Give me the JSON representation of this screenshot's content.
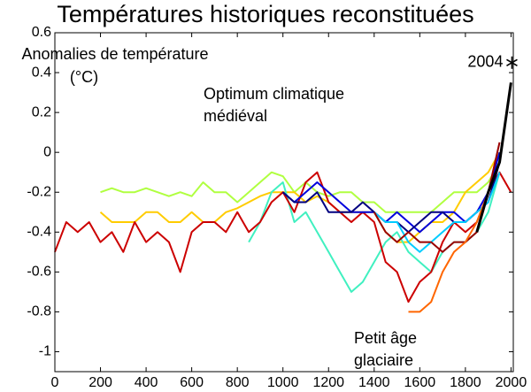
{
  "chart_data": {
    "type": "line",
    "title": "Températures historiques reconstituées",
    "ylabel": [
      "Anomalies de température",
      "(°C)"
    ],
    "annotations": [
      {
        "lines": [
          "Optimum climatique",
          "médiéval"
        ]
      },
      {
        "lines": [
          "Petit âge",
          "glaciaire"
        ]
      }
    ],
    "highlight": {
      "x": 2004,
      "y": 0.45,
      "label": "2004",
      "color": "#000000"
    },
    "x": [
      0,
      50,
      100,
      150,
      200,
      250,
      300,
      350,
      400,
      450,
      500,
      550,
      600,
      650,
      700,
      750,
      800,
      850,
      900,
      950,
      1000,
      1050,
      1100,
      1150,
      1200,
      1250,
      1300,
      1350,
      1400,
      1450,
      1500,
      1550,
      1600,
      1650,
      1700,
      1750,
      1800,
      1850,
      1900,
      1950,
      2000
    ],
    "xlim": [
      0,
      2010
    ],
    "ylim": [
      -1.1,
      0.6
    ],
    "xticks": [
      0,
      200,
      400,
      600,
      800,
      1000,
      1200,
      1400,
      1600,
      1800,
      2000
    ],
    "yticks": [
      0.6,
      0.4,
      0.2,
      0,
      -0.2,
      -0.4,
      -0.6,
      -0.8,
      -1
    ],
    "grid": false,
    "series": [
      {
        "color": "#b0ff40",
        "values": [
          null,
          null,
          null,
          null,
          -0.2,
          -0.18,
          -0.2,
          -0.2,
          -0.18,
          -0.2,
          -0.22,
          -0.2,
          -0.22,
          -0.15,
          -0.2,
          -0.2,
          -0.25,
          -0.2,
          -0.15,
          -0.1,
          -0.12,
          -0.2,
          -0.15,
          -0.2,
          -0.22,
          -0.2,
          -0.2,
          -0.25,
          -0.25,
          -0.3,
          -0.3,
          -0.3,
          -0.3,
          -0.3,
          -0.25,
          -0.2,
          -0.2,
          -0.2,
          -0.15,
          -0.05,
          null
        ]
      },
      {
        "color": "#ffcc00",
        "values": [
          null,
          null,
          null,
          null,
          -0.3,
          -0.35,
          -0.35,
          -0.35,
          -0.3,
          -0.3,
          -0.35,
          -0.35,
          -0.3,
          -0.35,
          -0.35,
          -0.3,
          -0.28,
          -0.25,
          -0.22,
          -0.2,
          -0.2,
          -0.2,
          -0.25,
          -0.22,
          -0.25,
          -0.3,
          -0.3,
          -0.3,
          -0.3,
          -0.4,
          -0.45,
          -0.45,
          -0.4,
          -0.35,
          -0.35,
          -0.3,
          -0.2,
          -0.15,
          -0.1,
          0,
          null
        ]
      },
      {
        "color": "#40f0c0",
        "values": [
          null,
          null,
          null,
          null,
          null,
          null,
          null,
          null,
          null,
          null,
          null,
          null,
          null,
          null,
          null,
          null,
          null,
          -0.45,
          -0.35,
          -0.2,
          -0.15,
          -0.35,
          -0.3,
          -0.4,
          -0.5,
          -0.6,
          -0.7,
          -0.65,
          -0.55,
          -0.45,
          -0.4,
          -0.5,
          -0.55,
          -0.6,
          -0.5,
          -0.45,
          -0.45,
          -0.4,
          -0.3,
          -0.1,
          null
        ]
      },
      {
        "color": "#cc0000",
        "values": [
          -0.5,
          -0.35,
          -0.4,
          -0.35,
          -0.45,
          -0.4,
          -0.5,
          -0.35,
          -0.45,
          -0.4,
          -0.45,
          -0.6,
          -0.4,
          -0.35,
          -0.35,
          -0.4,
          -0.3,
          -0.4,
          -0.35,
          -0.25,
          -0.2,
          -0.3,
          -0.15,
          -0.1,
          -0.25,
          -0.3,
          -0.35,
          -0.3,
          -0.35,
          -0.55,
          -0.6,
          -0.75,
          -0.65,
          -0.6,
          -0.45,
          -0.35,
          -0.4,
          -0.35,
          -0.2,
          -0.1,
          -0.2
        ]
      },
      {
        "color": "#0000dd",
        "values": [
          null,
          null,
          null,
          null,
          null,
          null,
          null,
          null,
          null,
          null,
          null,
          null,
          null,
          null,
          null,
          null,
          null,
          null,
          null,
          null,
          -0.2,
          -0.25,
          -0.2,
          -0.15,
          -0.2,
          -0.25,
          -0.3,
          -0.3,
          -0.3,
          -0.35,
          -0.3,
          -0.35,
          -0.4,
          -0.35,
          -0.3,
          -0.3,
          -0.35,
          -0.3,
          -0.2,
          0,
          null
        ]
      },
      {
        "color": "#000080",
        "values": [
          null,
          null,
          null,
          null,
          null,
          null,
          null,
          null,
          null,
          null,
          null,
          null,
          null,
          null,
          null,
          null,
          null,
          null,
          null,
          null,
          -0.2,
          -0.25,
          -0.25,
          -0.2,
          -0.3,
          -0.3,
          -0.3,
          -0.25,
          -0.3,
          -0.35,
          -0.35,
          -0.4,
          -0.35,
          -0.3,
          -0.3,
          -0.35,
          -0.35,
          -0.3,
          -0.25,
          -0.05,
          null
        ]
      },
      {
        "color": "#00ccff",
        "values": [
          null,
          null,
          null,
          null,
          null,
          null,
          null,
          null,
          null,
          null,
          null,
          null,
          null,
          null,
          null,
          null,
          null,
          null,
          null,
          null,
          null,
          null,
          null,
          null,
          null,
          null,
          null,
          null,
          -0.3,
          -0.35,
          -0.35,
          -0.45,
          -0.5,
          -0.45,
          -0.4,
          -0.35,
          -0.35,
          -0.3,
          -0.25,
          -0.1,
          null
        ]
      },
      {
        "color": "#990000",
        "values": [
          null,
          null,
          null,
          null,
          null,
          null,
          null,
          null,
          null,
          null,
          null,
          null,
          null,
          null,
          null,
          null,
          null,
          null,
          null,
          null,
          null,
          null,
          null,
          null,
          null,
          null,
          null,
          null,
          -0.3,
          -0.4,
          -0.45,
          -0.4,
          -0.45,
          -0.45,
          -0.5,
          -0.45,
          -0.45,
          -0.4,
          -0.2,
          0.05,
          null
        ]
      },
      {
        "color": "#ff6600",
        "values": [
          null,
          null,
          null,
          null,
          null,
          null,
          null,
          null,
          null,
          null,
          null,
          null,
          null,
          null,
          null,
          null,
          null,
          null,
          null,
          null,
          null,
          null,
          null,
          null,
          null,
          null,
          null,
          null,
          null,
          null,
          null,
          -0.8,
          -0.8,
          -0.75,
          -0.6,
          -0.5,
          -0.45,
          -0.35,
          -0.2,
          -0.05,
          null
        ]
      },
      {
        "color": "#000000",
        "values": [
          null,
          null,
          null,
          null,
          null,
          null,
          null,
          null,
          null,
          null,
          null,
          null,
          null,
          null,
          null,
          null,
          null,
          null,
          null,
          null,
          null,
          null,
          null,
          null,
          null,
          null,
          null,
          null,
          null,
          null,
          null,
          null,
          null,
          null,
          null,
          null,
          null,
          -0.4,
          -0.2,
          -0.05,
          0.35
        ]
      }
    ]
  }
}
